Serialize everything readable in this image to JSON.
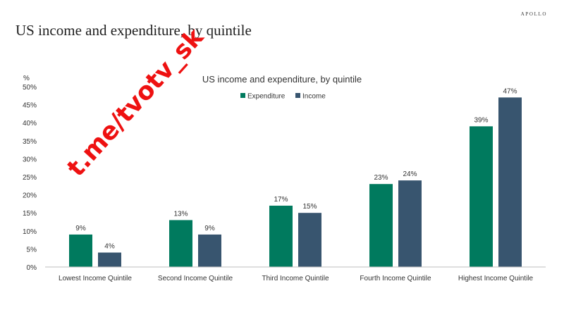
{
  "slide": {
    "title": "US income and expenditure, by quintile",
    "brand": "APOLLO"
  },
  "watermark": "t.me/tvotv_sk",
  "colors": {
    "expenditure": "#007A5E",
    "income": "#38556F",
    "watermark": "#EE1111"
  },
  "chart_data": {
    "type": "bar",
    "title": "US income and expenditure, by quintile",
    "ylabel": "%",
    "xlabel": "",
    "ylim": [
      0,
      50
    ],
    "yticks": [
      "0%",
      "5%",
      "10%",
      "15%",
      "20%",
      "25%",
      "30%",
      "35%",
      "40%",
      "45%",
      "50%"
    ],
    "categories": [
      "Lowest Income Quintile",
      "Second Income Quintile",
      "Third Income Quintile",
      "Fourth Income Quintile",
      "Highest Income Quintile"
    ],
    "series": [
      {
        "name": "Expenditure",
        "values": [
          9,
          13,
          17,
          23,
          39
        ],
        "labels": [
          "9%",
          "13%",
          "17%",
          "23%",
          "39%"
        ]
      },
      {
        "name": "Income",
        "values": [
          4,
          9,
          15,
          24,
          47
        ],
        "labels": [
          "4%",
          "9%",
          "15%",
          "24%",
          "47%"
        ]
      }
    ],
    "legend": "top-center",
    "grid": false
  }
}
